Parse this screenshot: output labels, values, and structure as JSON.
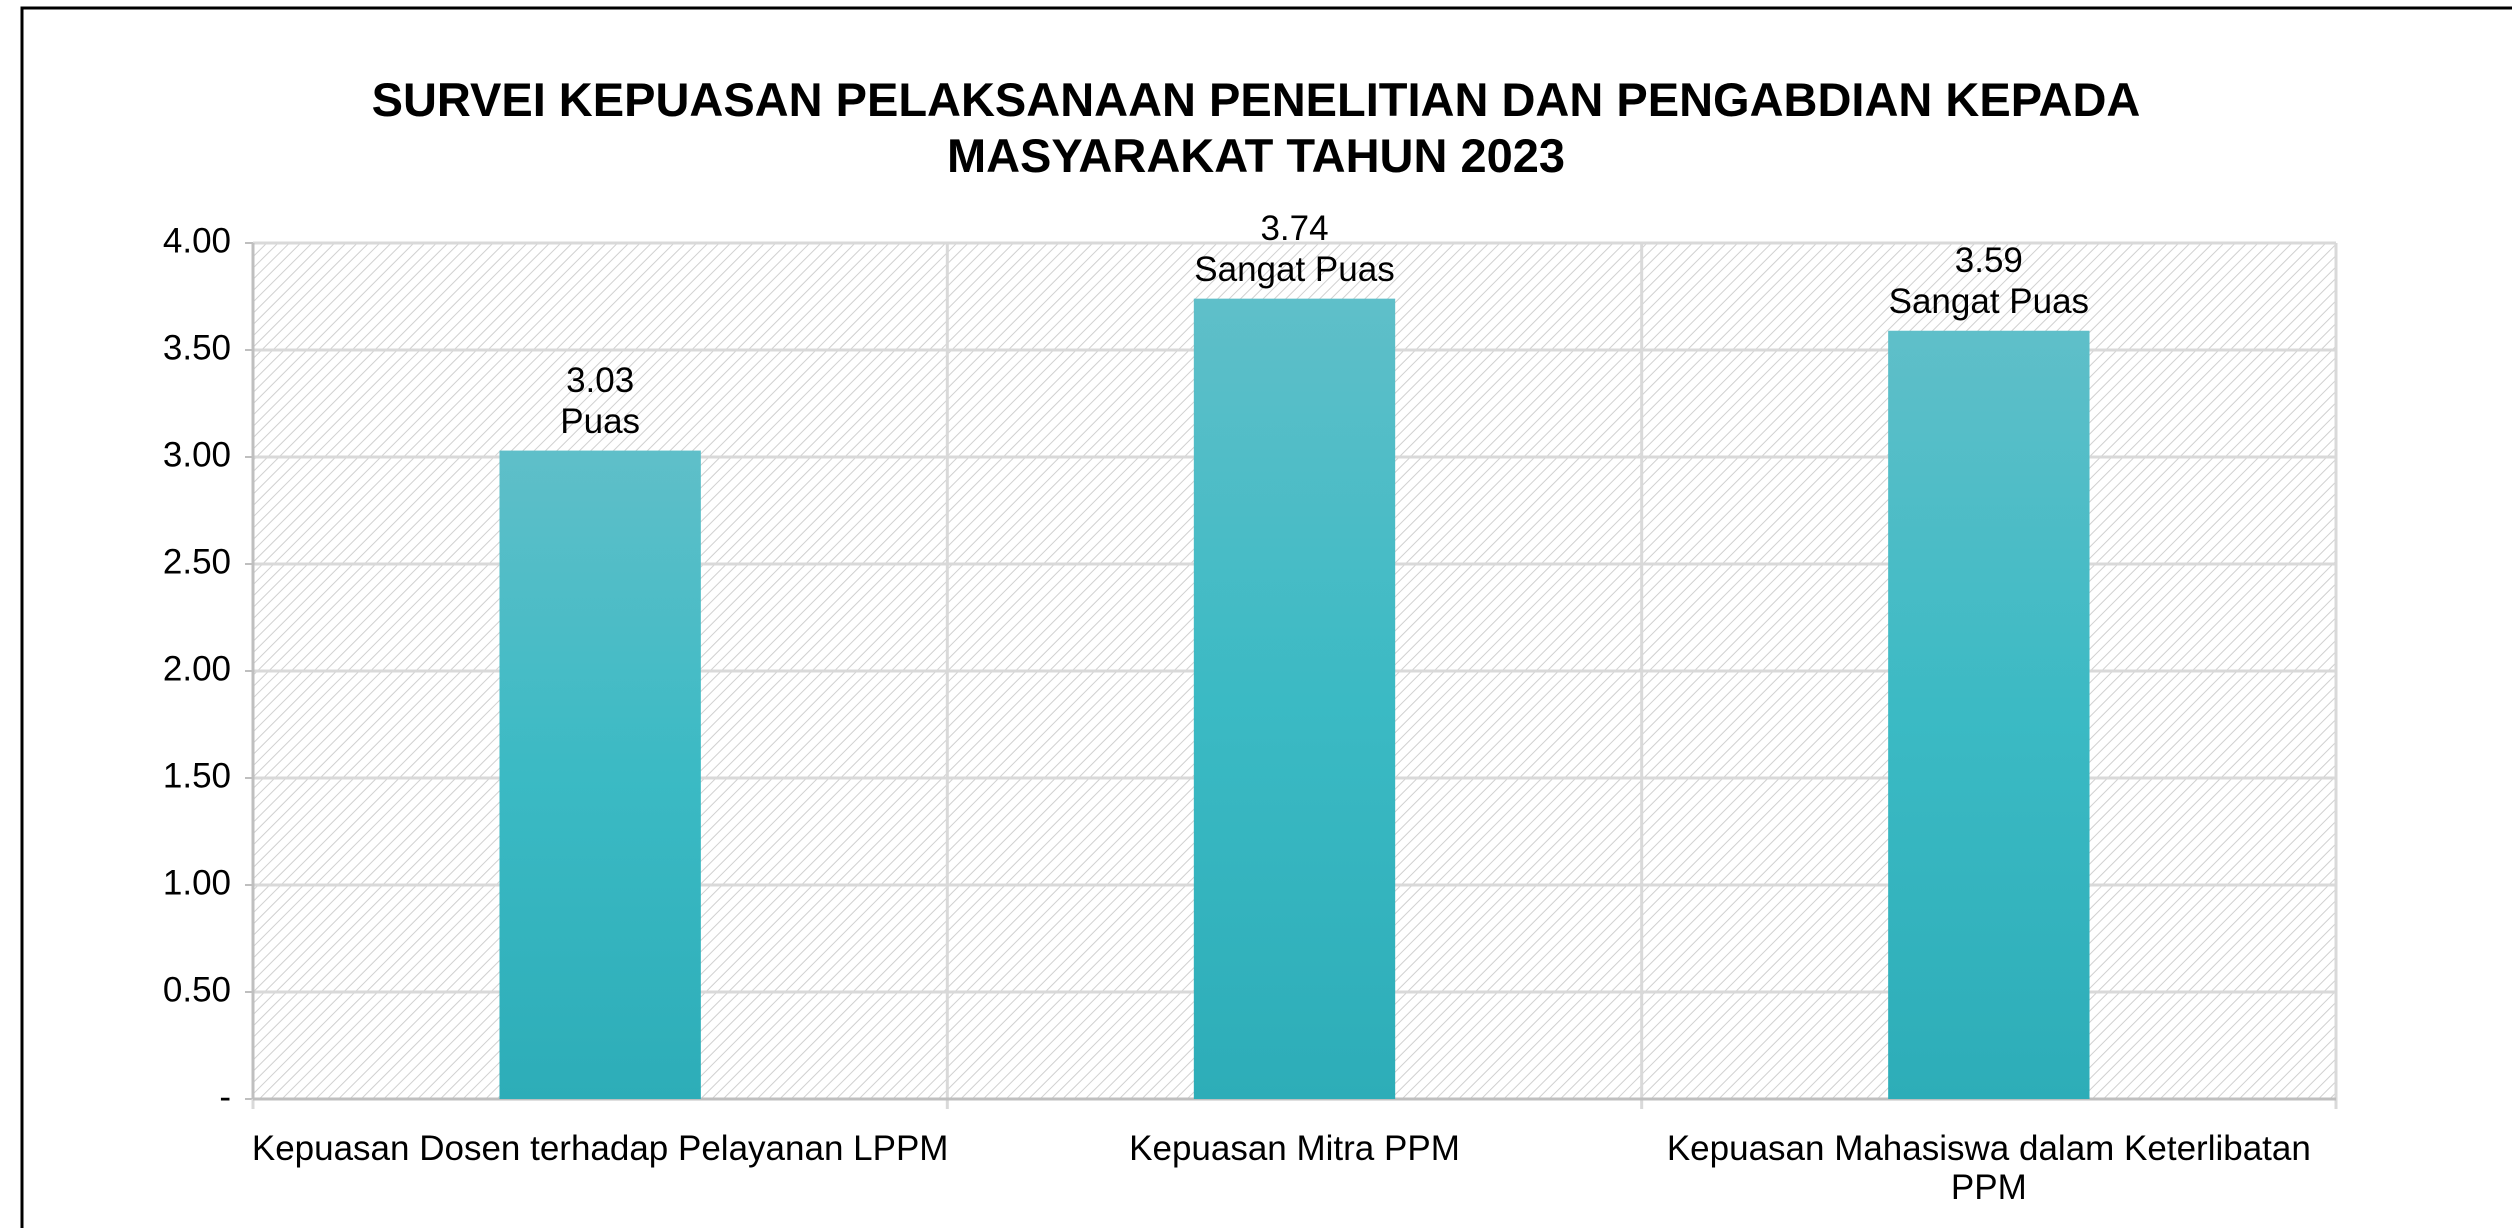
{
  "chart_data": {
    "type": "bar",
    "title": "SURVEI KEPUASAN PELAKSANAAN PENELITIAN DAN PENGABDIAN KEPADA MASYARAKAT TAHUN 2023",
    "categories": [
      "Kepuasan Dosen terhadap Pelayanan LPPM",
      "Kepuasan Mitra PPM",
      "Kepuasan Mahasiswa dalam Keterlibatan PPM"
    ],
    "values": [
      3.03,
      3.74,
      3.59
    ],
    "rating_labels": [
      "Puas",
      "Sangat Puas",
      "Sangat Puas"
    ],
    "color": "#3bbac4",
    "ylim": [
      0,
      4
    ],
    "yticks": [
      {
        "value": 0,
        "label": "-"
      },
      {
        "value": 0.5,
        "label": "0.50"
      },
      {
        "value": 1,
        "label": "1.00"
      },
      {
        "value": 1.5,
        "label": "1.50"
      },
      {
        "value": 2,
        "label": "2.00"
      },
      {
        "value": 2.5,
        "label": "2.50"
      },
      {
        "value": 3,
        "label": "3.00"
      },
      {
        "value": 3.5,
        "label": "3.50"
      },
      {
        "value": 4,
        "label": "4.00"
      }
    ],
    "grid": true
  }
}
